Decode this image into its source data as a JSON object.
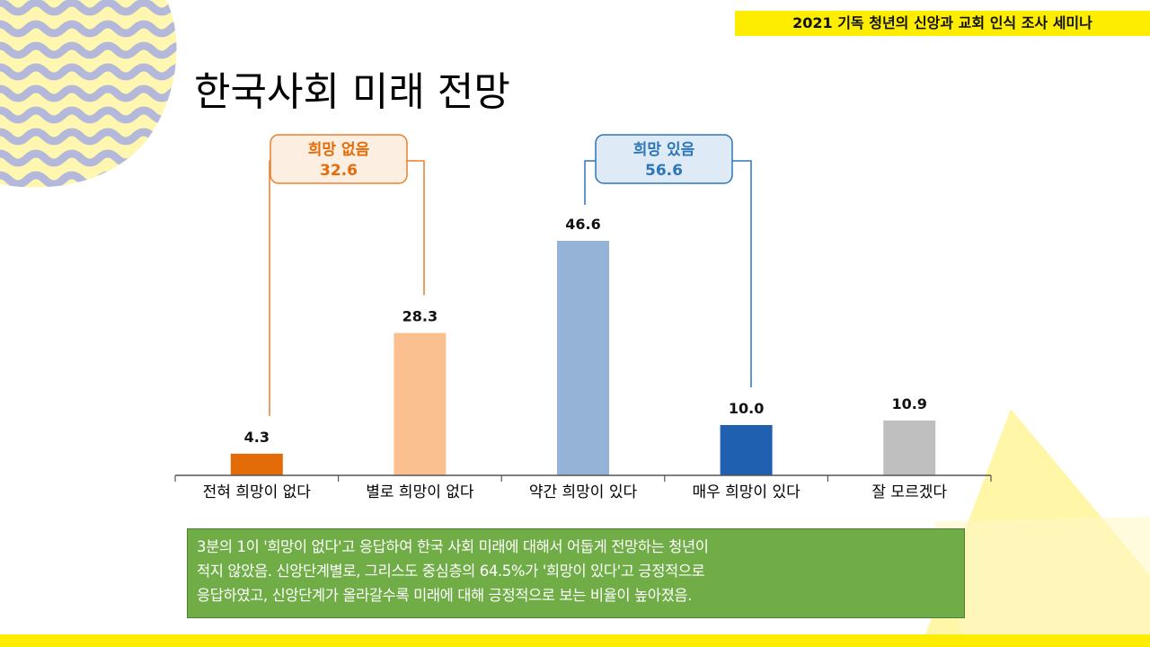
{
  "header": {
    "banner": "2021 기독 청년의 신앙과 교회 인식 조사 세미나"
  },
  "page": {
    "title": "한국사회 미래 전망"
  },
  "chart_data": {
    "type": "bar",
    "categories": [
      "전혀 희망이 없다",
      "별로 희망이 없다",
      "약간 희망이 있다",
      "매우 희망이 있다",
      "잘 모르겠다"
    ],
    "values": [
      4.3,
      28.3,
      46.6,
      10.0,
      10.9
    ],
    "value_labels": [
      "4.3",
      "28.3",
      "46.6",
      "10.0",
      "10.9"
    ],
    "colors": [
      "#e36c09",
      "#fac090",
      "#95b3d7",
      "#1f60b0",
      "#bfbfbf"
    ],
    "ylim": [
      0,
      50
    ],
    "groups": [
      {
        "label": "희망 없음",
        "value": "32.6",
        "color": "#e8802e",
        "text_color": "#e36c09",
        "bg": "#fdeee2",
        "members": [
          0,
          1
        ]
      },
      {
        "label": "희망 있음",
        "value": "56.6",
        "color": "#2e75b6",
        "text_color": "#2e75b6",
        "bg": "#deebf7",
        "members": [
          2,
          3
        ]
      }
    ]
  },
  "summary": {
    "lines": [
      "3분의 1이 '희망이 없다'고 응답하여 한국 사회 미래에 대해서 어둡게 전망하는 청년이",
      "적지 않았음. 신앙단계별로, 그리스도 중심층의 64.5%가 '희망이 있다'고 긍정적으로",
      "응답하였고, 신앙단계가 올라갈수록 미래에 대해 긍정적으로 보는 비율이 높아졌음."
    ]
  },
  "colors": {
    "banner": "#ffed00",
    "wave": "#b4b9dc",
    "summary_bg": "#70ad47"
  }
}
